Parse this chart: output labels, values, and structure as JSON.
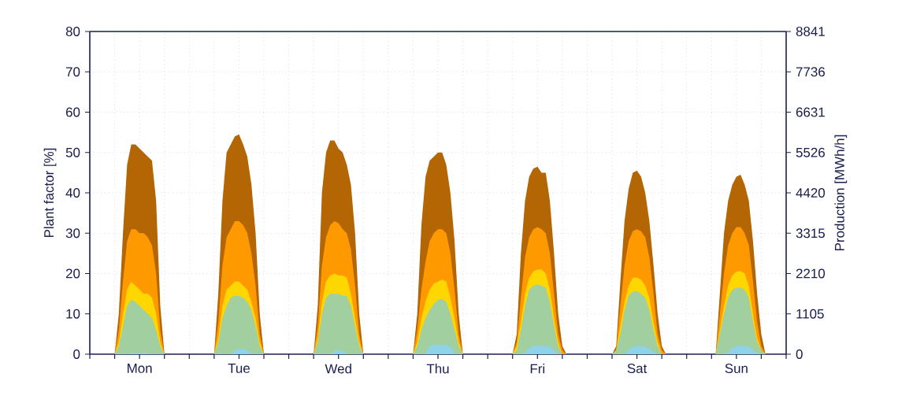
{
  "chart_data": {
    "type": "area",
    "ylabel": "Plant factor [%]",
    "y2label": "Production [MWh/h]",
    "categories": [
      null,
      null,
      null,
      null,
      null,
      null,
      null,
      null,
      null,
      null,
      null,
      null,
      "Mon",
      null,
      null,
      null,
      null,
      null,
      null,
      null,
      null,
      null,
      null,
      null,
      null,
      null,
      null,
      null,
      null,
      null,
      null,
      null,
      null,
      null,
      null,
      null,
      "Tue",
      null,
      null,
      null,
      null,
      null,
      null,
      null,
      null,
      null,
      null,
      null,
      null,
      null,
      null,
      null,
      null,
      null,
      null,
      null,
      null,
      null,
      null,
      null,
      "Wed",
      null,
      null,
      null,
      null,
      null,
      null,
      null,
      null,
      null,
      null,
      null,
      null,
      null,
      null,
      null,
      null,
      null,
      null,
      null,
      null,
      null,
      null,
      null,
      "Thu",
      null,
      null,
      null,
      null,
      null,
      null,
      null,
      null,
      null,
      null,
      null,
      null,
      null,
      null,
      null,
      null,
      null,
      null,
      null,
      null,
      null,
      null,
      null,
      "Fri",
      null,
      null,
      null,
      null,
      null,
      null,
      null,
      null,
      null,
      null,
      null,
      null,
      null,
      null,
      null,
      null,
      null,
      null,
      null,
      null,
      null,
      null,
      null,
      "Sat",
      null,
      null,
      null,
      null,
      null,
      null,
      null,
      null,
      null,
      null,
      null,
      null,
      null,
      null,
      null,
      null,
      null,
      null,
      null,
      null,
      null,
      null,
      null,
      "Sun",
      null,
      null,
      null,
      null,
      null,
      null,
      null,
      null,
      null,
      null,
      null,
      null
    ],
    "series": [
      {
        "color": "#b46504",
        "values": [
          0,
          0,
          0,
          0,
          0,
          0,
          0,
          10,
          30,
          47,
          52,
          52,
          51,
          50,
          49,
          48,
          38,
          12,
          0,
          0,
          0,
          0,
          0,
          0,
          0,
          0,
          0,
          0,
          0,
          0,
          0,
          15,
          38,
          50,
          52,
          54,
          54.5,
          52,
          49,
          42,
          30,
          10,
          0,
          0,
          0,
          0,
          0,
          0,
          0,
          0,
          0,
          0,
          0,
          0,
          0,
          12,
          40,
          50,
          53,
          53,
          51,
          50,
          47,
          42,
          30,
          10,
          0,
          0,
          0,
          0,
          0,
          0,
          0,
          0,
          0,
          0,
          0,
          0,
          0,
          10,
          32,
          44,
          48,
          49,
          50,
          50,
          47,
          40,
          28,
          10,
          0,
          0,
          0,
          0,
          0,
          0,
          0,
          0,
          0,
          0,
          0,
          0,
          0,
          5,
          25,
          38,
          44,
          46,
          46.5,
          45,
          45,
          38,
          25,
          10,
          2,
          0,
          0,
          0,
          0,
          0,
          0,
          0,
          0,
          0,
          0,
          0,
          0,
          2,
          18,
          33,
          41,
          45,
          45.5,
          44,
          40,
          33,
          22,
          10,
          2,
          0,
          0,
          0,
          0,
          0,
          0,
          0,
          0,
          0,
          0,
          0,
          0,
          0,
          15,
          30,
          38,
          42,
          44,
          44.5,
          42,
          38,
          28,
          15,
          5,
          0,
          0,
          0,
          0,
          0,
          0
        ]
      },
      {
        "color": "#ff9900",
        "values": [
          0,
          0,
          0,
          0,
          0,
          0,
          0,
          6,
          18,
          28,
          31,
          31,
          30,
          30,
          29,
          27,
          20,
          6,
          0,
          0,
          0,
          0,
          0,
          0,
          0,
          0,
          0,
          0,
          0,
          0,
          0,
          8,
          22,
          29,
          31,
          33,
          33,
          32,
          30,
          25,
          17,
          5,
          0,
          0,
          0,
          0,
          0,
          0,
          0,
          0,
          0,
          0,
          0,
          0,
          0,
          7,
          22,
          29,
          32,
          33,
          32.5,
          31,
          30,
          26,
          17,
          5,
          0,
          0,
          0,
          0,
          0,
          0,
          0,
          0,
          0,
          0,
          0,
          0,
          0,
          6,
          16,
          23,
          28,
          30,
          31,
          31,
          30,
          25,
          16,
          5,
          0,
          0,
          0,
          0,
          0,
          0,
          0,
          0,
          0,
          0,
          0,
          0,
          0,
          3,
          14,
          24,
          29,
          31,
          31.5,
          31,
          30,
          25,
          15,
          5,
          1,
          0,
          0,
          0,
          0,
          0,
          0,
          0,
          0,
          0,
          0,
          0,
          0,
          1,
          12,
          22,
          28,
          30.5,
          31,
          30.5,
          29,
          24,
          15,
          5,
          1,
          0,
          0,
          0,
          0,
          0,
          0,
          0,
          0,
          0,
          0,
          0,
          0,
          0,
          10,
          20,
          27,
          30,
          31.5,
          31.5,
          30,
          27,
          18,
          8,
          2,
          0,
          0,
          0,
          0,
          0,
          0
        ]
      },
      {
        "color": "#ffd700",
        "values": [
          0,
          0,
          0,
          0,
          0,
          0,
          0,
          3,
          10,
          16,
          18,
          17,
          16,
          15,
          15,
          14,
          10,
          3,
          0,
          0,
          0,
          0,
          0,
          0,
          0,
          0,
          0,
          0,
          0,
          0,
          0,
          4,
          12,
          16,
          17,
          18,
          18,
          17,
          16,
          13,
          9,
          3,
          0,
          0,
          0,
          0,
          0,
          0,
          0,
          0,
          0,
          0,
          0,
          0,
          0,
          4,
          13,
          18,
          19.5,
          20,
          19.5,
          19.5,
          19,
          15,
          9,
          3,
          0,
          0,
          0,
          0,
          0,
          0,
          0,
          0,
          0,
          0,
          0,
          0,
          0,
          3,
          9,
          13,
          16,
          17.5,
          18,
          18.5,
          18,
          14,
          9,
          3,
          0,
          0,
          0,
          0,
          0,
          0,
          0,
          0,
          0,
          0,
          0,
          0,
          0,
          2,
          8,
          15,
          19,
          20.5,
          21,
          21,
          20,
          16,
          9,
          3,
          0,
          0,
          0,
          0,
          0,
          0,
          0,
          0,
          0,
          0,
          0,
          0,
          0,
          1,
          7,
          13,
          17,
          19,
          19,
          18.5,
          17,
          14,
          8,
          3,
          0,
          0,
          0,
          0,
          0,
          0,
          0,
          0,
          0,
          0,
          0,
          0,
          0,
          0,
          6,
          12,
          17,
          19.5,
          20.5,
          20.6,
          20,
          17,
          10,
          4,
          1,
          0,
          0,
          0,
          0,
          0,
          0
        ]
      },
      {
        "color": "#a2cfa0",
        "values": [
          0,
          0,
          0,
          0,
          0,
          0,
          0,
          2,
          7,
          12,
          13.5,
          13,
          12,
          11,
          10,
          9,
          6,
          2,
          0,
          0,
          0,
          0,
          0,
          0,
          0,
          0,
          0,
          0,
          0,
          0,
          0,
          3,
          9,
          12,
          14,
          14.5,
          14.5,
          14,
          13,
          11,
          7,
          2,
          0,
          0,
          0,
          0,
          0,
          0,
          0,
          0,
          0,
          0,
          0,
          0,
          0,
          3,
          10,
          14,
          15,
          15,
          15,
          14.5,
          14.5,
          12,
          7,
          2,
          0,
          0,
          0,
          0,
          0,
          0,
          0,
          0,
          0,
          0,
          0,
          0,
          0,
          2,
          6,
          9,
          11,
          12.5,
          13.5,
          13.7,
          13,
          10,
          6,
          2,
          0,
          0,
          0,
          0,
          0,
          0,
          0,
          0,
          0,
          0,
          0,
          0,
          0,
          1,
          6,
          12,
          16,
          17,
          17.3,
          17,
          16.5,
          13,
          7,
          2,
          0,
          0,
          0,
          0,
          0,
          0,
          0,
          0,
          0,
          0,
          0,
          0,
          0,
          1,
          5,
          11,
          14.5,
          15.5,
          15.6,
          15,
          14,
          11,
          6,
          2,
          0,
          0,
          0,
          0,
          0,
          0,
          0,
          0,
          0,
          0,
          0,
          0,
          0,
          0,
          5,
          10,
          14,
          16,
          16.5,
          16.5,
          16,
          14,
          8,
          3,
          1,
          0,
          0,
          0,
          0,
          0,
          0
        ]
      },
      {
        "color": "#8fd3ea",
        "values": [
          0,
          0,
          0,
          0,
          0,
          0,
          0,
          0,
          0,
          0,
          0.3,
          0.3,
          0.3,
          0.3,
          0.3,
          0,
          0,
          0,
          0,
          0,
          0,
          0,
          0,
          0,
          0,
          0,
          0,
          0,
          0,
          0,
          0,
          0,
          0,
          0,
          0,
          1,
          1.3,
          1.2,
          1,
          0,
          0,
          0,
          0,
          0,
          0,
          0,
          0,
          0,
          0,
          0,
          0,
          0,
          0,
          0,
          0,
          0,
          0,
          0,
          0,
          0.8,
          1,
          0.9,
          0,
          0,
          0,
          0,
          0,
          0,
          0,
          0,
          0,
          0,
          0,
          0,
          0,
          0,
          0,
          0,
          0,
          0,
          0,
          0,
          2,
          2.3,
          2.3,
          2.3,
          2.2,
          2,
          0,
          0,
          0,
          0,
          0,
          0,
          0,
          0,
          0,
          0,
          0,
          0,
          0,
          0,
          0,
          0,
          0,
          0.5,
          1.5,
          2,
          2,
          2,
          2,
          1.8,
          1,
          0,
          0,
          0,
          0,
          0,
          0,
          0,
          0,
          0,
          0,
          0,
          0,
          0,
          0,
          0,
          0,
          0,
          1,
          1.8,
          2,
          2,
          1.8,
          1.5,
          0.5,
          0,
          0,
          0,
          0,
          0,
          0,
          0,
          0,
          0,
          0,
          0,
          0,
          0,
          0,
          0,
          0,
          0,
          0.5,
          1.5,
          2,
          2,
          2,
          1.8,
          1,
          0.3,
          0,
          0,
          0,
          0,
          0,
          0,
          0
        ]
      }
    ],
    "ylim": [
      0,
      80
    ],
    "yticks": [
      0,
      10,
      20,
      30,
      40,
      50,
      60,
      70,
      80
    ],
    "y2lim": [
      0,
      8841
    ],
    "y2ticks": [
      0,
      1105,
      2210,
      3315,
      4420,
      5526,
      6631,
      7736,
      8841
    ],
    "grid": true
  }
}
